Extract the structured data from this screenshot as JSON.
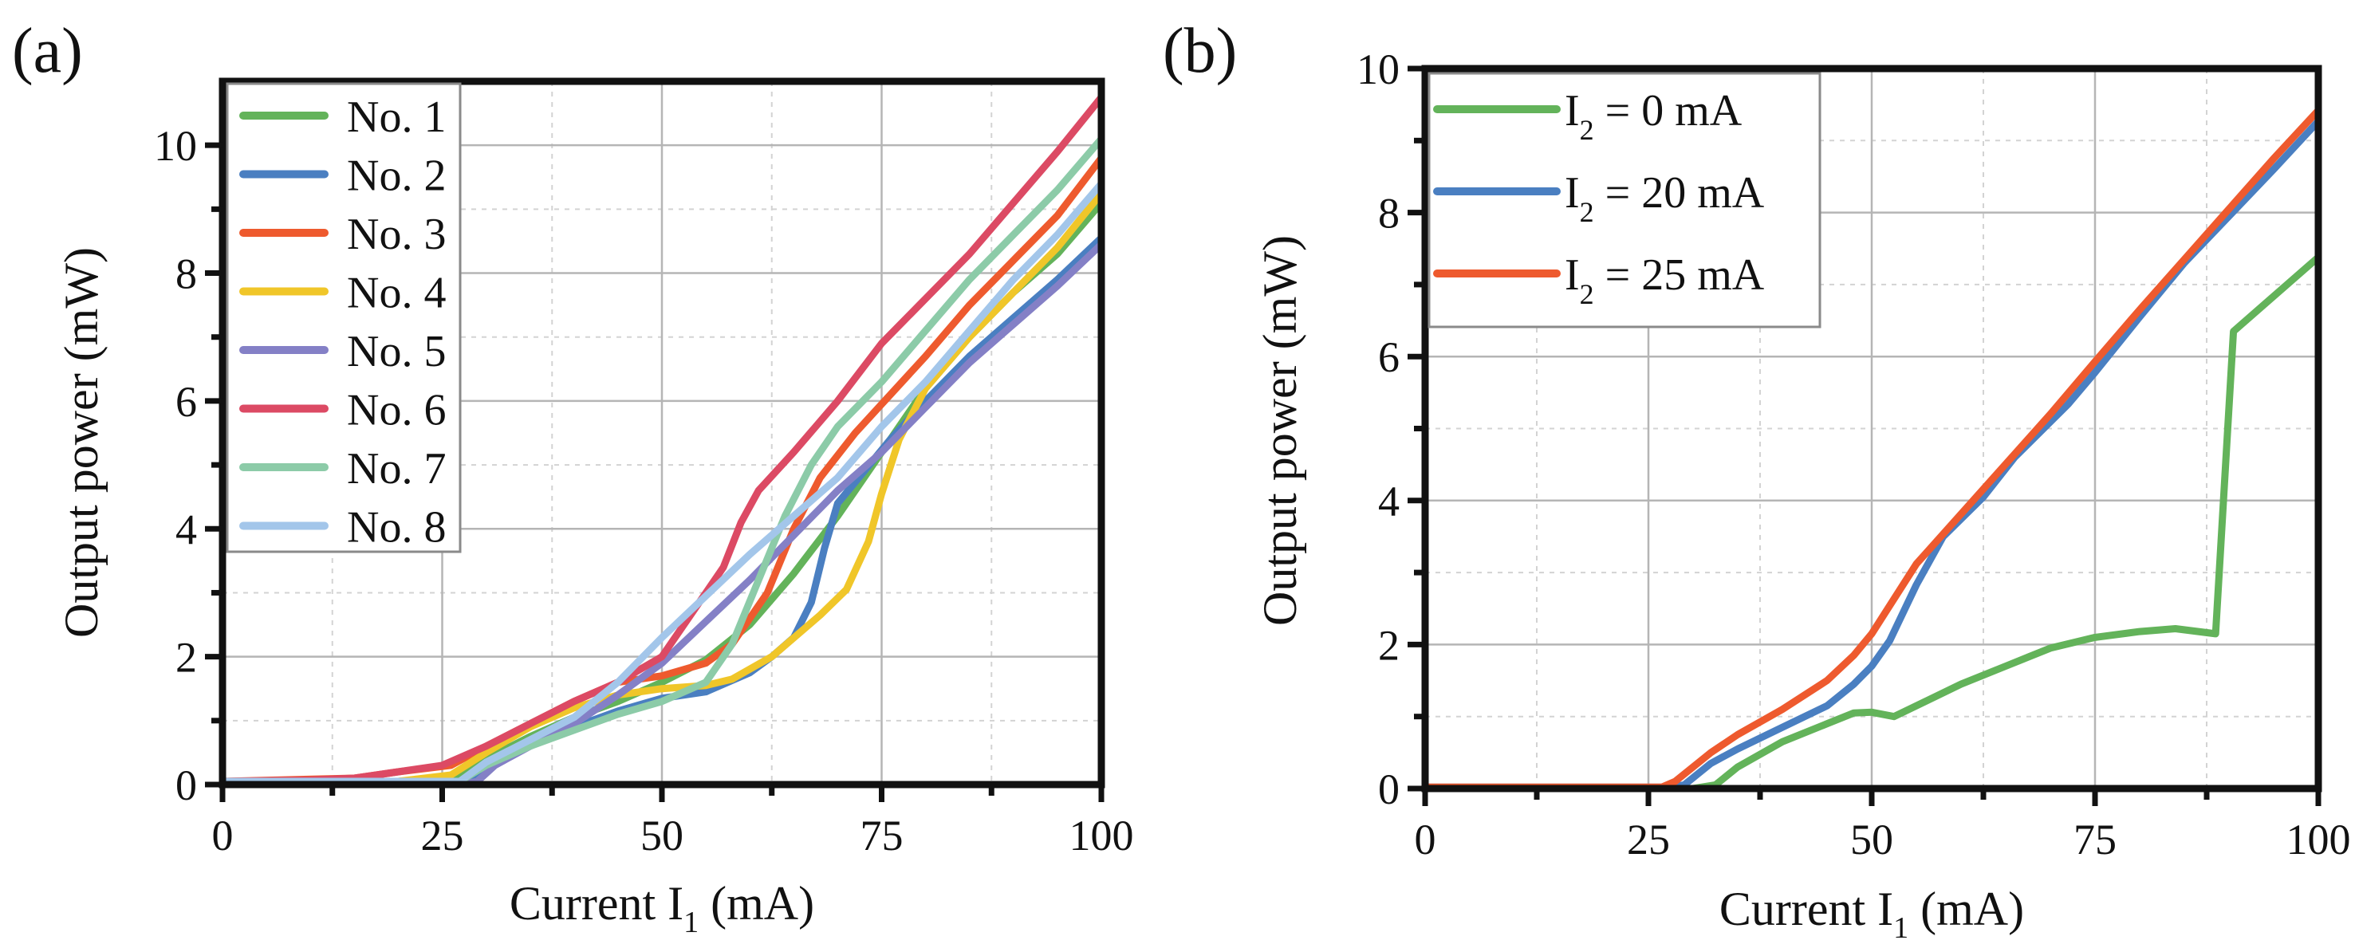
{
  "figure": {
    "panels": [
      "(a)",
      "(b)"
    ]
  },
  "chart_data": [
    {
      "type": "line",
      "panel_label": "(a)",
      "title": "",
      "xlabel": "Current I",
      "xlabel_sub": "1",
      "xlabel_unit": " (mA)",
      "ylabel": "Output power (mW)",
      "xlim": [
        0,
        100
      ],
      "ylim": [
        0,
        11
      ],
      "xticks": [
        0,
        25,
        50,
        75,
        100
      ],
      "xtick_labels": [
        "0",
        "25",
        "50",
        "75",
        "100"
      ],
      "xminor": [
        12.5,
        37.5,
        62.5,
        87.5
      ],
      "yticks": [
        0,
        2,
        4,
        6,
        8,
        10
      ],
      "ytick_labels": [
        "0",
        "2",
        "4",
        "6",
        "8",
        "10"
      ],
      "yminor": [
        1,
        3,
        5,
        7,
        9
      ],
      "grid": true,
      "legend_position": "top-left",
      "series": [
        {
          "name": "No. 1",
          "color": "#63b35a",
          "points": [
            [
              0,
              0.05
            ],
            [
              20,
              0.05
            ],
            [
              26,
              0.1
            ],
            [
              30,
              0.4
            ],
            [
              35,
              0.75
            ],
            [
              40,
              1.05
            ],
            [
              45,
              1.3
            ],
            [
              50,
              1.6
            ],
            [
              55,
              1.95
            ],
            [
              60,
              2.5
            ],
            [
              65,
              3.3
            ],
            [
              70,
              4.2
            ],
            [
              75,
              5.2
            ],
            [
              80,
              6.2
            ],
            [
              85,
              7.0
            ],
            [
              90,
              7.7
            ],
            [
              95,
              8.3
            ],
            [
              100,
              9.1
            ]
          ]
        },
        {
          "name": "No. 2",
          "color": "#4a7fc1",
          "points": [
            [
              0,
              0.05
            ],
            [
              28,
              0.05
            ],
            [
              30,
              0.3
            ],
            [
              35,
              0.6
            ],
            [
              40,
              0.9
            ],
            [
              45,
              1.15
            ],
            [
              50,
              1.35
            ],
            [
              55,
              1.45
            ],
            [
              60,
              1.75
            ],
            [
              62.5,
              2.0
            ],
            [
              65,
              2.3
            ],
            [
              67,
              2.85
            ],
            [
              68.5,
              3.7
            ],
            [
              70,
              4.4
            ],
            [
              73,
              4.9
            ],
            [
              76,
              5.4
            ],
            [
              80,
              6.0
            ],
            [
              85,
              6.7
            ],
            [
              90,
              7.3
            ],
            [
              95,
              7.9
            ],
            [
              100,
              8.55
            ]
          ]
        },
        {
          "name": "No. 3",
          "color": "#ee5a2e",
          "points": [
            [
              0,
              0.05
            ],
            [
              15,
              0.1
            ],
            [
              20,
              0.2
            ],
            [
              26,
              0.3
            ],
            [
              30,
              0.6
            ],
            [
              35,
              0.95
            ],
            [
              40,
              1.3
            ],
            [
              45,
              1.6
            ],
            [
              50,
              1.7
            ],
            [
              55,
              1.9
            ],
            [
              58,
              2.2
            ],
            [
              62,
              3.0
            ],
            [
              65,
              4.0
            ],
            [
              68,
              4.8
            ],
            [
              72,
              5.5
            ],
            [
              76,
              6.1
            ],
            [
              80,
              6.7
            ],
            [
              85,
              7.5
            ],
            [
              90,
              8.2
            ],
            [
              95,
              8.9
            ],
            [
              100,
              9.8
            ]
          ]
        },
        {
          "name": "No. 4",
          "color": "#f0c629",
          "points": [
            [
              0,
              0.05
            ],
            [
              20,
              0.05
            ],
            [
              26,
              0.15
            ],
            [
              30,
              0.5
            ],
            [
              35,
              0.9
            ],
            [
              40,
              1.2
            ],
            [
              45,
              1.4
            ],
            [
              50,
              1.5
            ],
            [
              55,
              1.55
            ],
            [
              58,
              1.65
            ],
            [
              62.5,
              2.0
            ],
            [
              68,
              2.65
            ],
            [
              71,
              3.05
            ],
            [
              73.5,
              3.8
            ],
            [
              75,
              4.55
            ],
            [
              77,
              5.4
            ],
            [
              80,
              6.2
            ],
            [
              85,
              7.0
            ],
            [
              90,
              7.7
            ],
            [
              95,
              8.4
            ],
            [
              100,
              9.25
            ]
          ]
        },
        {
          "name": "No. 5",
          "color": "#8480c6",
          "points": [
            [
              0,
              0.0
            ],
            [
              27,
              0.0
            ],
            [
              29,
              0.05
            ],
            [
              31,
              0.3
            ],
            [
              35,
              0.6
            ],
            [
              40,
              0.95
            ],
            [
              45,
              1.4
            ],
            [
              50,
              1.9
            ],
            [
              55,
              2.55
            ],
            [
              60,
              3.2
            ],
            [
              65,
              3.9
            ],
            [
              70,
              4.6
            ],
            [
              75,
              5.2
            ],
            [
              80,
              5.9
            ],
            [
              85,
              6.6
            ],
            [
              90,
              7.2
            ],
            [
              95,
              7.8
            ],
            [
              100,
              8.45
            ]
          ]
        },
        {
          "name": "No. 6",
          "color": "#dc4a64",
          "points": [
            [
              0,
              0.05
            ],
            [
              10,
              0.07
            ],
            [
              15,
              0.1
            ],
            [
              20,
              0.2
            ],
            [
              25,
              0.3
            ],
            [
              30,
              0.6
            ],
            [
              35,
              0.95
            ],
            [
              40,
              1.3
            ],
            [
              45,
              1.6
            ],
            [
              50,
              2.0
            ],
            [
              55,
              3.0
            ],
            [
              57,
              3.4
            ],
            [
              59,
              4.1
            ],
            [
              61,
              4.6
            ],
            [
              63,
              4.9
            ],
            [
              65,
              5.2
            ],
            [
              70,
              6.0
            ],
            [
              75,
              6.9
            ],
            [
              80,
              7.6
            ],
            [
              85,
              8.3
            ],
            [
              90,
              9.1
            ],
            [
              95,
              9.9
            ],
            [
              100,
              10.75
            ]
          ]
        },
        {
          "name": "No. 7",
          "color": "#8ccba8",
          "points": [
            [
              0,
              0.05
            ],
            [
              27,
              0.05
            ],
            [
              30,
              0.3
            ],
            [
              35,
              0.6
            ],
            [
              40,
              0.85
            ],
            [
              45,
              1.1
            ],
            [
              50,
              1.3
            ],
            [
              55,
              1.6
            ],
            [
              58,
              2.2
            ],
            [
              61,
              3.2
            ],
            [
              64,
              4.2
            ],
            [
              67,
              5.0
            ],
            [
              70,
              5.6
            ],
            [
              75,
              6.3
            ],
            [
              80,
              7.1
            ],
            [
              85,
              7.9
            ],
            [
              90,
              8.6
            ],
            [
              95,
              9.3
            ],
            [
              100,
              10.1
            ]
          ]
        },
        {
          "name": "No. 8",
          "color": "#a3c6ea",
          "points": [
            [
              0,
              0.05
            ],
            [
              27,
              0.05
            ],
            [
              30,
              0.35
            ],
            [
              35,
              0.7
            ],
            [
              40,
              1.05
            ],
            [
              45,
              1.6
            ],
            [
              50,
              2.3
            ],
            [
              55,
              2.95
            ],
            [
              60,
              3.6
            ],
            [
              65,
              4.2
            ],
            [
              70,
              4.8
            ],
            [
              75,
              5.6
            ],
            [
              80,
              6.3
            ],
            [
              85,
              7.1
            ],
            [
              90,
              7.9
            ],
            [
              95,
              8.6
            ],
            [
              100,
              9.4
            ]
          ]
        }
      ]
    },
    {
      "type": "line",
      "panel_label": "(b)",
      "title": "",
      "xlabel": "Current I",
      "xlabel_sub": "1",
      "xlabel_unit": " (mA)",
      "ylabel": "Output power (mW)",
      "xlim": [
        0,
        100
      ],
      "ylim": [
        0,
        10
      ],
      "xticks": [
        0,
        25,
        50,
        75,
        100
      ],
      "xtick_labels": [
        "0",
        "25",
        "50",
        "75",
        "100"
      ],
      "xminor": [
        12.5,
        37.5,
        62.5,
        87.5
      ],
      "yticks": [
        0,
        2,
        4,
        6,
        8,
        10
      ],
      "ytick_labels": [
        "0",
        "2",
        "4",
        "6",
        "8",
        "10"
      ],
      "yminor": [
        1,
        3,
        5,
        7,
        9
      ],
      "grid": true,
      "legend_position": "top-left",
      "series": [
        {
          "name": "I2 = 0 mA",
          "label_main": "I",
          "label_sub": "2",
          "label_rest": " = 0 mA",
          "color": "#63b35a",
          "points": [
            [
              0,
              0
            ],
            [
              30,
              0
            ],
            [
              32.5,
              0.05
            ],
            [
              35,
              0.3
            ],
            [
              40,
              0.65
            ],
            [
              45,
              0.9
            ],
            [
              48,
              1.05
            ],
            [
              50,
              1.06
            ],
            [
              52.5,
              1.0
            ],
            [
              55,
              1.15
            ],
            [
              60,
              1.45
            ],
            [
              65,
              1.7
            ],
            [
              70,
              1.95
            ],
            [
              75,
              2.1
            ],
            [
              80,
              2.18
            ],
            [
              84,
              2.22
            ],
            [
              88.5,
              2.15
            ],
            [
              90.5,
              6.35
            ],
            [
              100,
              7.38
            ]
          ]
        },
        {
          "name": "I2 = 20 mA",
          "label_main": "I",
          "label_sub": "2",
          "label_rest": " = 20 mA",
          "color": "#4a7fc1",
          "points": [
            [
              0,
              0.02
            ],
            [
              27.5,
              0.02
            ],
            [
              29,
              0.05
            ],
            [
              32,
              0.35
            ],
            [
              35,
              0.55
            ],
            [
              40,
              0.85
            ],
            [
              45,
              1.15
            ],
            [
              48,
              1.45
            ],
            [
              50,
              1.7
            ],
            [
              52,
              2.05
            ],
            [
              55,
              2.83
            ],
            [
              58,
              3.5
            ],
            [
              62.5,
              4.05
            ],
            [
              66,
              4.6
            ],
            [
              72,
              5.34
            ],
            [
              75,
              5.78
            ],
            [
              80,
              6.55
            ],
            [
              85,
              7.3
            ],
            [
              90,
              7.95
            ],
            [
              95,
              8.6
            ],
            [
              100,
              9.27
            ]
          ]
        },
        {
          "name": "I2 = 25 mA",
          "label_main": "I",
          "label_sub": "2",
          "label_rest": " = 25 mA",
          "color": "#ee5a2e",
          "points": [
            [
              0,
              0.02
            ],
            [
              26.5,
              0.02
            ],
            [
              28,
              0.1
            ],
            [
              32,
              0.5
            ],
            [
              35,
              0.75
            ],
            [
              40,
              1.1
            ],
            [
              45,
              1.5
            ],
            [
              48,
              1.85
            ],
            [
              50,
              2.15
            ],
            [
              55,
              3.12
            ],
            [
              62.5,
              4.16
            ],
            [
              70,
              5.2
            ],
            [
              75,
              5.93
            ],
            [
              80,
              6.65
            ],
            [
              85,
              7.35
            ],
            [
              90,
              8.05
            ],
            [
              95,
              8.75
            ],
            [
              100,
              9.42
            ]
          ]
        }
      ]
    }
  ]
}
